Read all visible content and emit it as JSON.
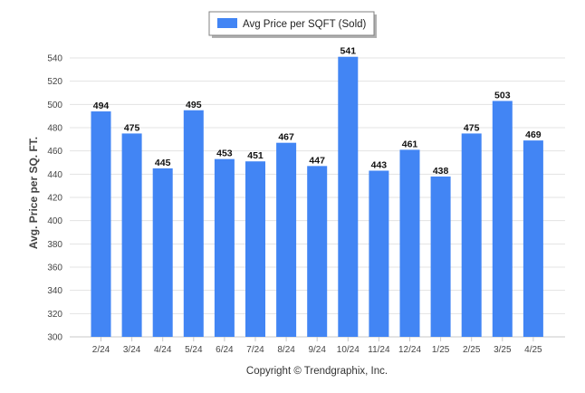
{
  "chart_data": {
    "type": "bar",
    "categories": [
      "2/24",
      "3/24",
      "4/24",
      "5/24",
      "6/24",
      "7/24",
      "8/24",
      "9/24",
      "10/24",
      "11/24",
      "12/24",
      "1/25",
      "2/25",
      "3/25",
      "4/25"
    ],
    "series": [
      {
        "name": "Avg Price per SQFT (Sold)",
        "values": [
          494,
          475,
          445,
          495,
          453,
          451,
          467,
          447,
          541,
          443,
          461,
          438,
          475,
          503,
          469
        ],
        "color": "#4285f4"
      }
    ],
    "ylabel": "Avg. Price per SQ. FT.",
    "ylim": [
      300,
      540
    ],
    "yticks": [
      300,
      320,
      340,
      360,
      380,
      400,
      420,
      440,
      460,
      480,
      500,
      520,
      540
    ],
    "grid": true,
    "legend_position": "top-center",
    "data_labels": true
  },
  "footer": {
    "copyright": "Copyright © Trendgraphix, Inc."
  }
}
